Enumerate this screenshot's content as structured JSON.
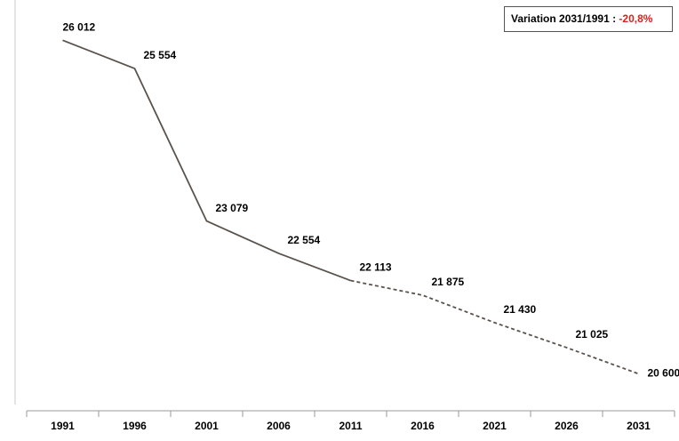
{
  "chart_data": {
    "type": "line",
    "categories": [
      "1991",
      "1996",
      "2001",
      "2006",
      "2011",
      "2016",
      "2021",
      "2026",
      "2031"
    ],
    "values": [
      26012,
      25554,
      23079,
      22554,
      22113,
      21875,
      21430,
      21025,
      20600
    ],
    "value_labels": [
      "26 012",
      "25 554",
      "23 079",
      "22 554",
      "22 113",
      "21 875",
      "21 430",
      "21 025",
      "20 600"
    ],
    "color": "#5a534d",
    "dashed_from": "2011",
    "ylim": [
      20000,
      26550
    ],
    "annotation": {
      "text": "Variation 2031/1991 : ",
      "value_text": "-20,8%",
      "value_color": "#e0201b"
    }
  }
}
